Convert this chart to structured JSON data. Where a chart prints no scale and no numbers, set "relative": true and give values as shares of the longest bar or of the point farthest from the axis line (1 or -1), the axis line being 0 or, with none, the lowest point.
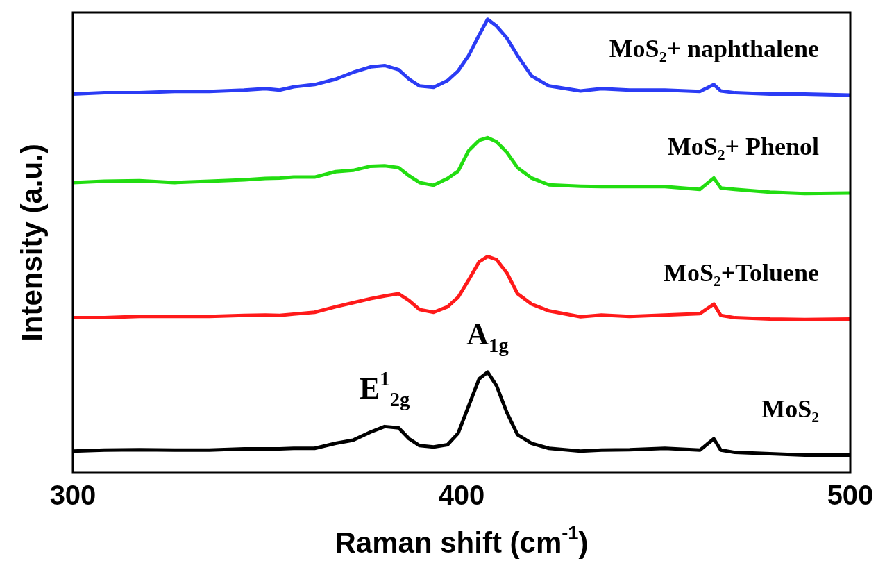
{
  "chart_data": {
    "type": "line",
    "relative": true,
    "xlabel": "Raman shift (cm$^{-1}$)",
    "ylabel": "Intensity (a.u.)",
    "x": [
      300,
      308.1,
      317.1,
      326.1,
      335.1,
      344.1,
      349.5,
      353.2,
      356.8,
      362.2,
      367.6,
      372.1,
      376.6,
      380.2,
      383.8,
      386.5,
      389.2,
      392.8,
      396.4,
      399.1,
      401.8,
      404.5,
      406.7,
      409.0,
      411.7,
      414.4,
      418.0,
      422.5,
      430.6,
      436.0,
      443.2,
      452.3,
      461.3,
      464.9,
      466.7,
      470.3,
      479.3,
      488.3,
      500
    ],
    "xlim": [
      300,
      500
    ],
    "xticks": [
      300,
      400,
      500
    ],
    "tick_labels": "x",
    "grid": false,
    "legend": false,
    "marker": "none",
    "line_style": "solid",
    "series": [
      {
        "name": "MoS₂+ naphthalene",
        "color": "#2b3cf5",
        "values": [
          0.835,
          0.838,
          0.838,
          0.841,
          0.841,
          0.844,
          0.847,
          0.844,
          0.851,
          0.856,
          0.868,
          0.883,
          0.895,
          0.898,
          0.889,
          0.868,
          0.853,
          0.85,
          0.865,
          0.886,
          0.92,
          0.965,
          1,
          0.985,
          0.958,
          0.92,
          0.875,
          0.853,
          0.842,
          0.847,
          0.844,
          0.844,
          0.841,
          0.856,
          0.842,
          0.838,
          0.835,
          0.835,
          0.833
        ]
      },
      {
        "name": "MoS₂+ Phenol",
        "color": "#22dd11",
        "values": [
          0.64,
          0.643,
          0.644,
          0.64,
          0.643,
          0.646,
          0.649,
          0.65,
          0.652,
          0.652,
          0.664,
          0.667,
          0.676,
          0.677,
          0.673,
          0.655,
          0.64,
          0.634,
          0.649,
          0.665,
          0.71,
          0.733,
          0.739,
          0.73,
          0.706,
          0.673,
          0.65,
          0.635,
          0.632,
          0.631,
          0.631,
          0.631,
          0.625,
          0.65,
          0.628,
          0.625,
          0.619,
          0.616,
          0.617
        ]
      },
      {
        "name": "MoS₂+Toluene",
        "color": "#ff1a1a",
        "values": [
          0.342,
          0.342,
          0.345,
          0.345,
          0.345,
          0.347,
          0.348,
          0.347,
          0.35,
          0.354,
          0.366,
          0.375,
          0.384,
          0.39,
          0.395,
          0.38,
          0.36,
          0.354,
          0.366,
          0.387,
          0.425,
          0.465,
          0.477,
          0.47,
          0.44,
          0.395,
          0.372,
          0.357,
          0.344,
          0.348,
          0.345,
          0.348,
          0.351,
          0.372,
          0.347,
          0.342,
          0.339,
          0.338,
          0.339
        ]
      },
      {
        "name": "MoS₂",
        "color": "#000000",
        "values": [
          0.048,
          0.05,
          0.051,
          0.05,
          0.05,
          0.053,
          0.053,
          0.053,
          0.054,
          0.054,
          0.065,
          0.072,
          0.09,
          0.102,
          0.099,
          0.075,
          0.06,
          0.057,
          0.062,
          0.087,
          0.147,
          0.207,
          0.222,
          0.192,
          0.132,
          0.084,
          0.065,
          0.054,
          0.048,
          0.05,
          0.051,
          0.054,
          0.05,
          0.075,
          0.05,
          0.045,
          0.042,
          0.039,
          0.039
        ]
      }
    ],
    "annotations": [
      {
        "text": "E$^{1}$$_{2g}$",
        "x": 380.2,
        "y": 0.102
      },
      {
        "text": "A$_{1g}$",
        "x": 406.7,
        "y": 0.222
      }
    ]
  }
}
